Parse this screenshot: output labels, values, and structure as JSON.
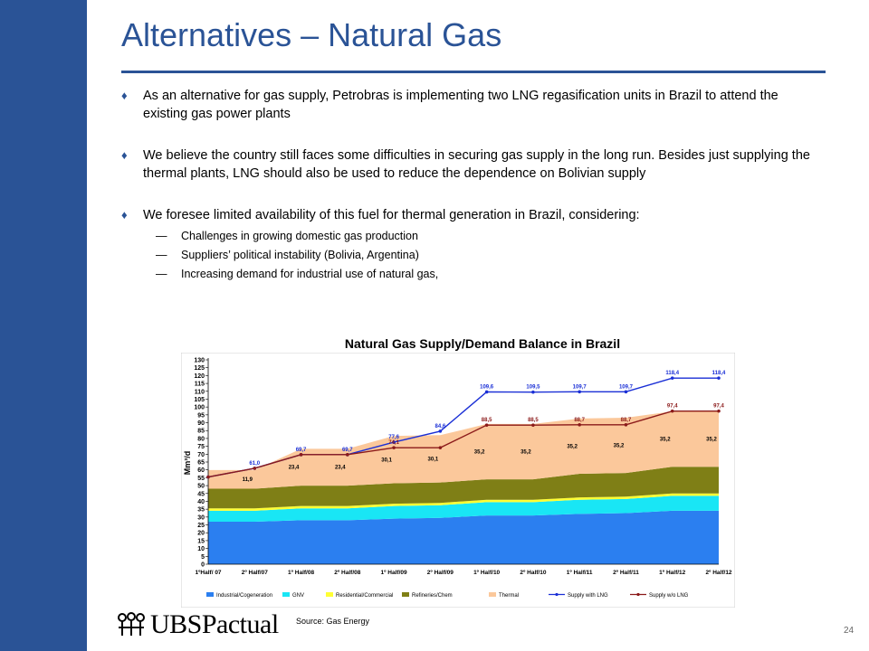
{
  "slide": {
    "title": "Alternatives – Natural Gas",
    "page_number": "24",
    "source": "Source: Gas Energy",
    "logo_text": "UBSPactual"
  },
  "bullets": [
    {
      "text": "As an alternative for gas supply, Petrobras is implementing two LNG regasification units in Brazil to attend the existing gas power plants"
    },
    {
      "text": "We believe the country still faces some difficulties in securing gas supply in the long run. Besides just supplying the thermal plants, LNG should also be used to reduce the dependence on Bolivian supply"
    },
    {
      "text": "We foresee limited availability of this fuel for thermal generation in Brazil, considering:"
    }
  ],
  "sub_bullets": [
    "Challenges in growing domestic gas production",
    "Suppliers’ political instability (Bolivia, Argentina)",
    "Increasing demand for industrial use of natural gas,"
  ],
  "colors": {
    "brand_blue": "#2a5396",
    "industrial": "#2b7ff0",
    "gnv": "#19e6f5",
    "residential": "#ffff33",
    "refineries": "#7f7f16",
    "thermal": "#fbc89b",
    "supply_lng": "#1a2fd6",
    "supply_wo_lng": "#8b1a1a"
  },
  "chart_data": {
    "type": "area",
    "title": "Natural Gas Supply/Demand Balance in Brazil",
    "ylabel": "Mm³/d",
    "ylim": [
      0,
      130
    ],
    "yticks": [
      0,
      5,
      10,
      15,
      20,
      25,
      30,
      35,
      40,
      45,
      50,
      55,
      60,
      65,
      70,
      75,
      80,
      85,
      90,
      95,
      100,
      105,
      110,
      115,
      120,
      125,
      130
    ],
    "categories": [
      "1ºHalf/ 07",
      "2º Half/07",
      "1º Half/08",
      "2º Half/08",
      "1º Half/09",
      "2º Half/09",
      "1º Half/10",
      "2º Half/10",
      "1º Half/11",
      "2º Half/11",
      "1º Half/12",
      "2º Half/12"
    ],
    "stacked_series": [
      {
        "name": "Industrial/Cogeneration",
        "values": [
          27,
          27,
          28,
          28,
          29,
          29.5,
          31,
          31,
          32,
          32.5,
          34,
          34
        ]
      },
      {
        "name": "GNV",
        "values": [
          7,
          7,
          7.5,
          7.5,
          8,
          8,
          8.5,
          8.5,
          9,
          9,
          9.5,
          9.5
        ]
      },
      {
        "name": "Residential/Commercial",
        "values": [
          1.5,
          1.5,
          1.5,
          1.5,
          1.5,
          1.5,
          1.5,
          1.5,
          1.5,
          1.5,
          1.5,
          1.5
        ]
      },
      {
        "name": "Refineries/Chem",
        "values": [
          12.5,
          12.5,
          13,
          13,
          13,
          13,
          13,
          13,
          15,
          15,
          17,
          17
        ]
      },
      {
        "name": "Thermal",
        "values": [
          11.9,
          11.9,
          23.4,
          23.4,
          30.1,
          30.1,
          35.2,
          35.2,
          35.2,
          35.2,
          35.2,
          35.2
        ]
      }
    ],
    "thermal_labels": [
      "11,9",
      "23,4",
      "23,4",
      "30,1",
      "30,1",
      "35,2",
      "35,2",
      "35,2",
      "35,2",
      "35,2",
      "35,2"
    ],
    "line_series": [
      {
        "name": "Supply with LNG",
        "values": [
          55.5,
          61.0,
          69.7,
          69.7,
          77.6,
          84.6,
          109.6,
          109.5,
          109.7,
          109.7,
          118.4,
          118.4
        ],
        "labels": [
          "",
          "61,0",
          "69,7",
          "69,7",
          "77,6",
          "84,6",
          "109,6",
          "109,5",
          "109,7",
          "109,7",
          "118,4",
          "118,4"
        ]
      },
      {
        "name": "Supply w/o LNG",
        "values": [
          55.5,
          61.0,
          69.7,
          69.7,
          74.1,
          74.1,
          88.5,
          88.5,
          88.7,
          88.7,
          97.4,
          97.4
        ],
        "labels": [
          "",
          "",
          "",
          "",
          "74,1",
          "",
          "88,5",
          "88,5",
          "88,7",
          "88,7",
          "97,4",
          "97,4"
        ]
      }
    ],
    "legend": [
      "Industrial/Cogeneration",
      "GNV",
      "Residential/Commercial",
      "Refineries/Chem",
      "Thermal",
      "Supply with LNG",
      "Supply w/o LNG"
    ],
    "legend_position": "bottom"
  }
}
